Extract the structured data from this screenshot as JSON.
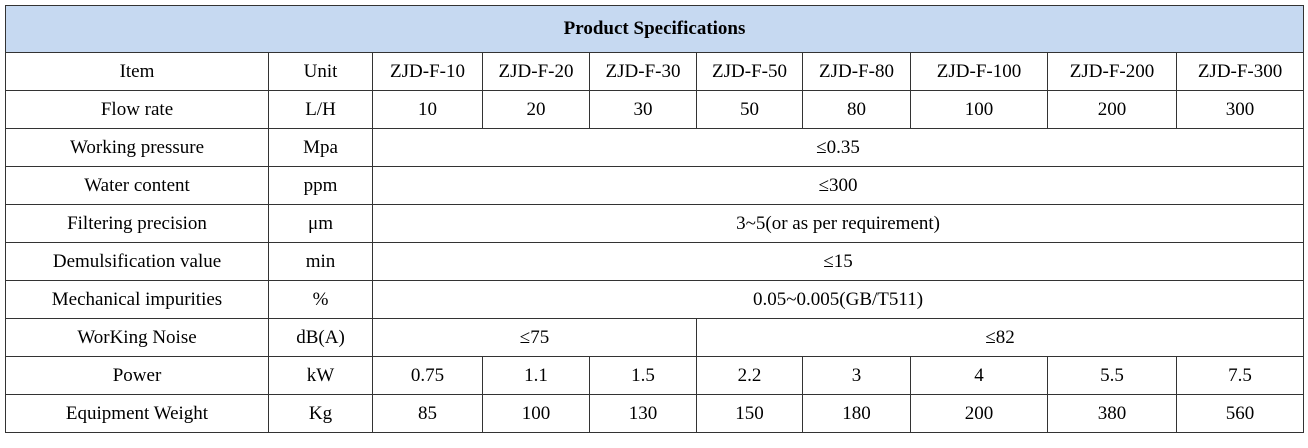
{
  "table": {
    "title": "Product Specifications",
    "header": [
      "Item",
      "Unit",
      "ZJD-F-10",
      "ZJD-F-20",
      "ZJD-F-30",
      "ZJD-F-50",
      "ZJD-F-80",
      "ZJD-F-100",
      "ZJD-F-200",
      "ZJD-F-300"
    ],
    "rows": [
      [
        "Flow rate",
        "L/H",
        "10",
        "20",
        "30",
        "50",
        "80",
        "100",
        "200",
        "300"
      ],
      [
        "Working pressure",
        "Mpa",
        "≤0.35"
      ],
      [
        "Water content",
        "ppm",
        "≤300"
      ],
      [
        "Filtering precision",
        "μm",
        "3~5(or as per requirement)"
      ],
      [
        "Demulsification value",
        "min",
        "≤15"
      ],
      [
        "Mechanical impurities",
        "%",
        "0.05~0.005(GB/T511)"
      ],
      [
        "WorKing Noise",
        "dB(A)",
        "≤75",
        "≤82"
      ],
      [
        "Power",
        "kW",
        "0.75",
        "1.1",
        "1.5",
        "2.2",
        "3",
        "4",
        "5.5",
        "7.5"
      ],
      [
        "Equipment Weight",
        "Kg",
        "85",
        "100",
        "130",
        "150",
        "180",
        "200",
        "380",
        "560"
      ]
    ]
  }
}
